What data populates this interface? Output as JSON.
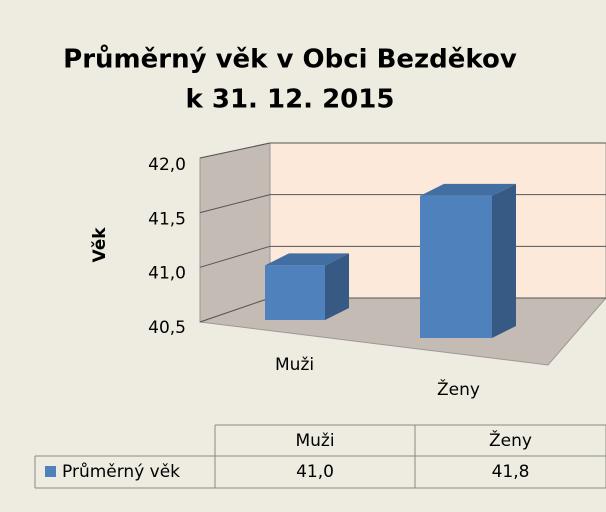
{
  "chart_data": {
    "type": "bar3d",
    "title": [
      "Průměrný věk v Obci Bezděkov",
      "k 31. 12. 2015"
    ],
    "y_label": "Věk",
    "categories": [
      "Muži",
      "Ženy"
    ],
    "series": [
      {
        "name": "Průměrný věk",
        "color": "#4f81bd",
        "values": [
          41.0,
          41.8
        ],
        "value_labels": [
          "41,0",
          "41,8"
        ]
      }
    ],
    "ylim": [
      40.5,
      42
    ],
    "yticks": [
      {
        "value": 40.5,
        "label": "40,5"
      },
      {
        "value": 41,
        "label": "41,0"
      },
      {
        "value": 41.5,
        "label": "41,5"
      },
      {
        "value": 42,
        "label": "42,0"
      }
    ],
    "grid": true,
    "data_table": true
  }
}
